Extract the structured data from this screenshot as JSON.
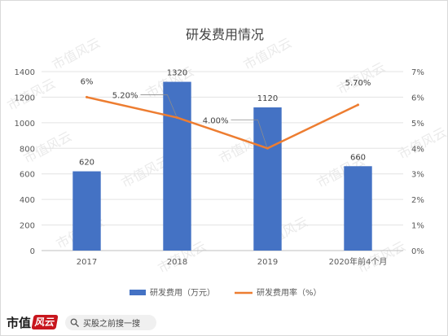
{
  "chart_data": {
    "type": "bar",
    "title": "研发费用情况",
    "categories": [
      "2017",
      "2018",
      "2019",
      "2020年前4个月"
    ],
    "series": [
      {
        "name": "研发费用（万元）",
        "type": "bar",
        "axis": "left",
        "values": [
          620,
          1320,
          1120,
          660
        ],
        "labels": [
          "620",
          "1320",
          "1120",
          "660"
        ],
        "color": "#4472c4"
      },
      {
        "name": "研发费用率（%）",
        "type": "line",
        "axis": "right",
        "values": [
          6.0,
          5.2,
          4.0,
          5.7
        ],
        "labels": [
          "6%",
          "5.20%",
          "4.00%",
          "5.70%"
        ],
        "color": "#ed7d31"
      }
    ],
    "y_left": {
      "min": 0,
      "max": 1400,
      "step": 200,
      "ticks": [
        "0",
        "200",
        "400",
        "600",
        "800",
        "1000",
        "1200",
        "1400"
      ]
    },
    "y_right": {
      "min": 0,
      "max": 7,
      "step": 1,
      "ticks": [
        "0%",
        "1%",
        "2%",
        "3%",
        "4%",
        "5%",
        "6%",
        "7%"
      ]
    },
    "grid": true,
    "legend_position": "bottom"
  },
  "watermark": "市值风云",
  "footer": {
    "brand": "市值",
    "brand_mark": "风云",
    "search_icon": "magnifier-icon",
    "search_text": "买股之前搜一搜"
  }
}
